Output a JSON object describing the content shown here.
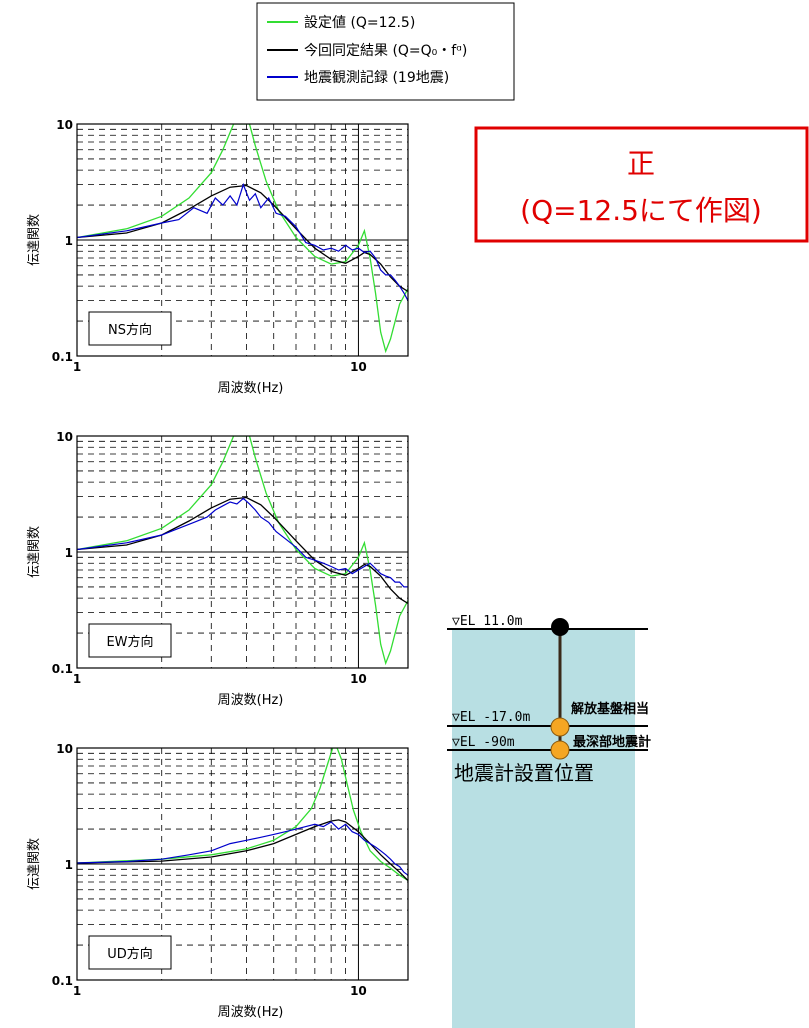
{
  "legend": {
    "items": [
      {
        "label": "設定値 (Q=12.5)",
        "color": "#33dd33"
      },
      {
        "label": "今回同定結果 (Q=Q₀・fᵅ)",
        "color": "#000000"
      },
      {
        "label": "地震観測記録 (19地震)",
        "color": "#0000cc"
      }
    ]
  },
  "correction": {
    "line1": "正",
    "line2": "(Q=12.5にて作図)",
    "color": "#e00000"
  },
  "chart_data": [
    {
      "type": "line",
      "direction_label": "NS方向",
      "xlabel": "周波数(Hz)",
      "ylabel": "伝達関数",
      "xscale": "log",
      "yscale": "log",
      "xlim": [
        1,
        15
      ],
      "ylim": [
        0.1,
        10
      ],
      "xticklabels": [
        "1",
        "10"
      ],
      "yticklabels": [
        "0.1",
        "1",
        "10"
      ],
      "grid": true,
      "series": [
        {
          "name": "設定値 (Q=12.5)",
          "color": "#33dd33",
          "x": [
            1,
            1.5,
            2,
            2.5,
            3,
            3.3,
            3.6,
            3.8,
            3.95,
            4.1,
            4.3,
            4.7,
            5.2,
            6,
            7,
            8,
            9,
            10,
            10.5,
            11,
            11.5,
            12,
            12.5,
            13,
            14,
            15
          ],
          "y": [
            1.05,
            1.25,
            1.6,
            2.3,
            3.8,
            6,
            10,
            10,
            10,
            10,
            6.5,
            3.2,
            1.8,
            1.05,
            0.72,
            0.62,
            0.65,
            0.9,
            1.2,
            0.7,
            0.35,
            0.16,
            0.11,
            0.14,
            0.28,
            0.38
          ]
        },
        {
          "name": "今回同定結果 (Q=Q₀・fᵅ)",
          "color": "#000000",
          "x": [
            1,
            1.5,
            2,
            2.5,
            3,
            3.5,
            4,
            4.5,
            5,
            6,
            7,
            8,
            9,
            10,
            10.5,
            11,
            12,
            13,
            14,
            15
          ],
          "y": [
            1.05,
            1.15,
            1.4,
            1.85,
            2.4,
            2.85,
            2.95,
            2.55,
            2.0,
            1.25,
            0.85,
            0.68,
            0.63,
            0.72,
            0.78,
            0.75,
            0.62,
            0.48,
            0.4,
            0.36
          ]
        },
        {
          "name": "地震観測記録 (19地震)",
          "color": "#0000cc",
          "x": [
            1,
            1.5,
            2,
            2.3,
            2.6,
            2.9,
            3.1,
            3.3,
            3.5,
            3.7,
            3.9,
            4.1,
            4.3,
            4.5,
            4.8,
            5.1,
            5.5,
            6,
            6.5,
            7,
            7.5,
            8,
            8.5,
            9,
            9.5,
            10,
            10.5,
            11,
            11.5,
            12,
            12.5,
            13,
            13.5,
            14,
            14.5,
            15
          ],
          "y": [
            1.05,
            1.2,
            1.4,
            1.5,
            1.9,
            1.7,
            2.3,
            2.0,
            2.4,
            2.0,
            3.0,
            2.2,
            2.5,
            1.9,
            2.3,
            1.7,
            1.6,
            1.3,
            0.95,
            0.9,
            0.82,
            0.85,
            0.8,
            0.9,
            0.82,
            0.85,
            0.78,
            0.8,
            0.7,
            0.55,
            0.5,
            0.5,
            0.45,
            0.4,
            0.35,
            0.3
          ]
        }
      ]
    },
    {
      "type": "line",
      "direction_label": "EW方向",
      "xlabel": "周波数(Hz)",
      "ylabel": "伝達関数",
      "xscale": "log",
      "yscale": "log",
      "xlim": [
        1,
        15
      ],
      "ylim": [
        0.1,
        10
      ],
      "xticklabels": [
        "1",
        "10"
      ],
      "yticklabels": [
        "0.1",
        "1",
        "10"
      ],
      "grid": true,
      "series": [
        {
          "name": "設定値 (Q=12.5)",
          "color": "#33dd33",
          "x": [
            1,
            1.5,
            2,
            2.5,
            3,
            3.3,
            3.6,
            3.8,
            3.95,
            4.1,
            4.3,
            4.7,
            5.2,
            6,
            7,
            8,
            9,
            10,
            10.5,
            11,
            11.5,
            12,
            12.5,
            13,
            14,
            15
          ],
          "y": [
            1.05,
            1.25,
            1.6,
            2.3,
            3.8,
            6,
            10,
            10,
            10,
            10,
            6.5,
            3.2,
            1.8,
            1.05,
            0.72,
            0.62,
            0.65,
            0.9,
            1.2,
            0.7,
            0.35,
            0.16,
            0.11,
            0.14,
            0.28,
            0.38
          ]
        },
        {
          "name": "今回同定結果 (Q=Q₀・fᵅ)",
          "color": "#000000",
          "x": [
            1,
            1.5,
            2,
            2.5,
            3,
            3.5,
            4,
            4.5,
            5,
            6,
            7,
            8,
            9,
            10,
            10.5,
            11,
            12,
            13,
            14,
            15
          ],
          "y": [
            1.05,
            1.15,
            1.4,
            1.85,
            2.4,
            2.85,
            2.95,
            2.55,
            2.0,
            1.25,
            0.85,
            0.68,
            0.63,
            0.72,
            0.78,
            0.75,
            0.62,
            0.48,
            0.4,
            0.36
          ]
        },
        {
          "name": "地震観測記録 (19地震)",
          "color": "#0000cc",
          "x": [
            1,
            1.5,
            2,
            2.3,
            2.6,
            2.9,
            3.1,
            3.3,
            3.5,
            3.7,
            3.9,
            4.1,
            4.3,
            4.5,
            4.8,
            5.1,
            5.5,
            6,
            6.5,
            7,
            7.5,
            8,
            8.5,
            9,
            9.5,
            10,
            10.5,
            11,
            11.5,
            12,
            12.5,
            13,
            13.5,
            14,
            14.5,
            15
          ],
          "y": [
            1.05,
            1.2,
            1.4,
            1.6,
            1.8,
            2.0,
            2.3,
            2.5,
            2.7,
            2.6,
            2.9,
            2.6,
            2.3,
            2.0,
            1.8,
            1.5,
            1.3,
            1.1,
            0.9,
            0.85,
            0.8,
            0.75,
            0.7,
            0.72,
            0.65,
            0.7,
            0.75,
            0.8,
            0.72,
            0.65,
            0.62,
            0.6,
            0.55,
            0.55,
            0.5,
            0.5
          ]
        }
      ]
    },
    {
      "type": "line",
      "direction_label": "UD方向",
      "xlabel": "周波数(Hz)",
      "ylabel": "伝達関数",
      "xscale": "log",
      "yscale": "log",
      "xlim": [
        1,
        15
      ],
      "ylim": [
        0.1,
        10
      ],
      "xticklabels": [
        "1",
        "10"
      ],
      "yticklabels": [
        "0.1",
        "1",
        "10"
      ],
      "grid": true,
      "series": [
        {
          "name": "設定値 (Q=12.5)",
          "color": "#33dd33",
          "x": [
            1,
            2,
            3,
            4,
            5,
            6,
            6.8,
            7.3,
            7.8,
            8.1,
            8.4,
            8.7,
            9.1,
            9.6,
            10.2,
            11,
            12,
            13,
            14,
            15
          ],
          "y": [
            1.02,
            1.1,
            1.2,
            1.35,
            1.6,
            2.1,
            3.0,
            4.5,
            7.5,
            10,
            10,
            8,
            5,
            2.9,
            1.9,
            1.3,
            1.05,
            0.92,
            0.8,
            0.72
          ]
        },
        {
          "name": "今回同定結果 (Q=Q₀・fᵅ)",
          "color": "#000000",
          "x": [
            1,
            2,
            3,
            4,
            5,
            6,
            7,
            8,
            8.5,
            9,
            10,
            11,
            12,
            13,
            14,
            15
          ],
          "y": [
            1.02,
            1.06,
            1.15,
            1.3,
            1.5,
            1.8,
            2.1,
            2.35,
            2.4,
            2.3,
            1.9,
            1.5,
            1.2,
            1.0,
            0.85,
            0.72
          ]
        },
        {
          "name": "地震観測記録 (19地震)",
          "color": "#0000cc",
          "x": [
            1,
            1.5,
            2,
            2.5,
            3,
            3.5,
            4,
            4.5,
            5,
            5.5,
            6,
            6.5,
            7,
            7.5,
            8,
            8.5,
            9,
            9.5,
            10,
            10.5,
            11,
            11.5,
            12,
            12.5,
            13,
            13.5,
            14,
            14.5,
            15
          ],
          "y": [
            1.02,
            1.05,
            1.1,
            1.2,
            1.3,
            1.5,
            1.6,
            1.7,
            1.8,
            1.9,
            2.0,
            2.1,
            2.2,
            2.1,
            2.3,
            2.0,
            2.2,
            1.9,
            1.8,
            1.6,
            1.5,
            1.4,
            1.3,
            1.2,
            1.1,
            1.0,
            0.95,
            0.85,
            0.8
          ]
        }
      ]
    }
  ],
  "site": {
    "title": "地震計設置位置",
    "levels": [
      {
        "label": "▽EL 11.0m",
        "marker_color": "#000000",
        "annotation": ""
      },
      {
        "label": "▽EL -17.0m",
        "marker_color": "#f5a623",
        "annotation": "解放基盤相当"
      },
      {
        "label": "▽EL -90m",
        "marker_color": "#f5a623",
        "annotation": "最深部地震計"
      }
    ],
    "soil_color": "#b8dfe3"
  }
}
